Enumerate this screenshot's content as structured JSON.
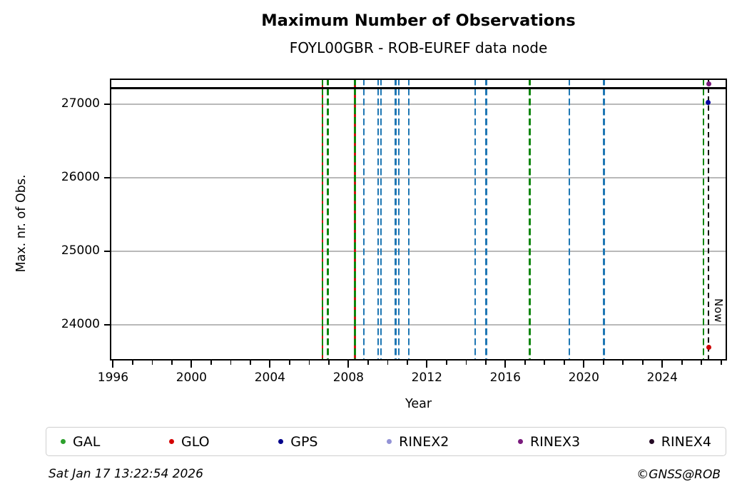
{
  "header": {
    "title": "Maximum Number of Observations",
    "subtitle": "FOYL00GBR - ROB-EUREF data node"
  },
  "footer": {
    "timestamp": "Sat Jan 17 13:22:54 2026",
    "credit": "©GNSS@ROB"
  },
  "legend": {
    "items": [
      {
        "label": "GAL",
        "color": "#2ca02c"
      },
      {
        "label": "GLO",
        "color": "#d40000"
      },
      {
        "label": "GPS",
        "color": "#00008b"
      },
      {
        "label": "RINEX2",
        "color": "#9393d6"
      },
      {
        "label": "RINEX3",
        "color": "#7a1b7d"
      },
      {
        "label": "RINEX4",
        "color": "#250a25"
      }
    ]
  },
  "chart_data": {
    "type": "line",
    "title": "Maximum Number of Observations",
    "subtitle": "FOYL00GBR - ROB-EUREF data node",
    "xlabel": "Year",
    "ylabel": "Max. nr. of Obs.",
    "xlim": [
      1995.84,
      2027.3
    ],
    "ylim": [
      23520,
      27350
    ],
    "xticks": [
      1996,
      2000,
      2004,
      2008,
      2012,
      2016,
      2020,
      2024
    ],
    "x_minor_step": 1,
    "yticks": [
      24000,
      25000,
      26000,
      27000
    ],
    "grid": {
      "axis": "y",
      "on": true,
      "color": "#b9b9b9"
    },
    "hline": {
      "name": "max-observations",
      "value": 27220,
      "color": "#000000",
      "style": "solid"
    },
    "event_lines": [
      {
        "x": 2006.68,
        "systems": [
          "GAL",
          "GLO"
        ],
        "style": "dashed"
      },
      {
        "x": 2006.95,
        "systems": [
          "GAL"
        ],
        "style": "dashed"
      },
      {
        "x": 2008.33,
        "systems": [
          "GAL",
          "GLO"
        ],
        "style": "dashed"
      },
      {
        "x": 2008.78,
        "systems": [
          "GPS"
        ],
        "style": "dashed"
      },
      {
        "x": 2009.52,
        "systems": [
          "GPS"
        ],
        "style": "dashed"
      },
      {
        "x": 2009.66,
        "systems": [
          "GPS"
        ],
        "style": "dashed"
      },
      {
        "x": 2010.4,
        "systems": [
          "GPS"
        ],
        "style": "dashed"
      },
      {
        "x": 2010.58,
        "systems": [
          "GPS"
        ],
        "style": "dashed"
      },
      {
        "x": 2011.07,
        "systems": [
          "GPS"
        ],
        "style": "dashed"
      },
      {
        "x": 2014.46,
        "systems": [
          "GPS"
        ],
        "style": "dashed"
      },
      {
        "x": 2015.03,
        "systems": [
          "GPS"
        ],
        "style": "dashed"
      },
      {
        "x": 2017.24,
        "systems": [
          "GAL"
        ],
        "style": "dashed"
      },
      {
        "x": 2019.27,
        "systems": [
          "GPS"
        ],
        "style": "dashed"
      },
      {
        "x": 2021.02,
        "systems": [
          "GPS"
        ],
        "style": "dashed"
      },
      {
        "x": 2026.1,
        "systems": [
          "GAL"
        ],
        "style": "dashed"
      }
    ],
    "now_line": {
      "x": 2026.35,
      "label": "Now",
      "color": "#000000",
      "style": "dashed"
    },
    "points": [
      {
        "x": 2026.38,
        "y": 27280,
        "series": "RINEX3"
      },
      {
        "x": 2026.33,
        "y": 27030,
        "series": "GPS"
      },
      {
        "x": 2026.38,
        "y": 23700,
        "series": "GLO"
      }
    ],
    "line_colors": {
      "GAL": "#0e860e",
      "GLO": "#cf1010",
      "GPS": "#1f77b4"
    },
    "point_colors": {
      "RINEX3": "#7a1b7d",
      "GPS": "#0000a0",
      "GLO": "#cc0000"
    },
    "legend_position": "bottom"
  }
}
